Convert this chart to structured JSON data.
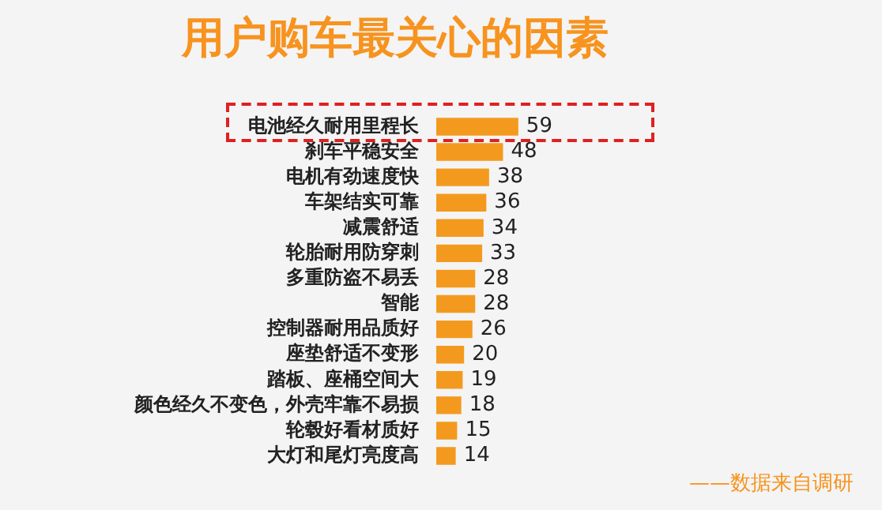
{
  "chart_data": {
    "type": "bar",
    "orientation": "horizontal",
    "title": "用户购车最关心的因素",
    "categories": [
      "电池经久耐用里程长",
      "刹车平稳安全",
      "电机有劲速度快",
      "车架结实可靠",
      "减震舒适",
      "轮胎耐用防穿刺",
      "多重防盗不易丢",
      "智能",
      "控制器耐用品质好",
      "座垫舒适不变形",
      "踏板、座桶空间大",
      "颜色经久不变色，外壳牢靠不易损",
      "轮毂好看材质好",
      "大灯和尾灯亮度高"
    ],
    "values": [
      59,
      48,
      38,
      36,
      34,
      33,
      28,
      28,
      26,
      20,
      19,
      18,
      15,
      14
    ],
    "color": "#f39a1e",
    "data_labels": true,
    "tick_labels": "y",
    "annotations": [
      "——数据来自调研"
    ]
  }
}
